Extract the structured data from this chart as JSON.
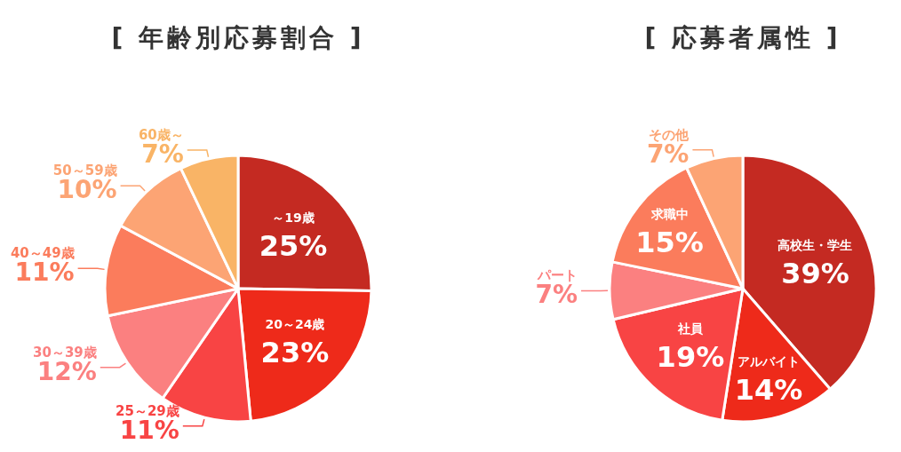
{
  "chart_data": [
    {
      "type": "pie",
      "title": "[ 年齢別応募割合 ]",
      "data_labels": true,
      "categories": [
        "～19歳",
        "20～24歳",
        "25～29歳",
        "30～39歳",
        "40～49歳",
        "50～59歳",
        "60歳～"
      ],
      "values": [
        25,
        23,
        11,
        12,
        11,
        10,
        7
      ],
      "value_labels": [
        "25%",
        "23%",
        "11%",
        "12%",
        "11%",
        "10%",
        "7%"
      ],
      "colors": [
        "#c42a22",
        "#ee2a1a",
        "#f84444",
        "#fb8080",
        "#fb7c5c",
        "#fca474",
        "#f9b466"
      ]
    },
    {
      "type": "pie",
      "title": "[ 応募者属性 ]",
      "data_labels": true,
      "categories": [
        "高校生・学生",
        "アルバイト",
        "社員",
        "パート",
        "求職中",
        "その他"
      ],
      "values": [
        39,
        14,
        19,
        7,
        15,
        7
      ],
      "value_labels": [
        "39%",
        "14%",
        "19%",
        "7%",
        "15%",
        "7%"
      ],
      "colors": [
        "#c42a22",
        "#ee2a1a",
        "#f84444",
        "#fb8080",
        "#fb7c5c",
        "#fca474"
      ]
    }
  ]
}
